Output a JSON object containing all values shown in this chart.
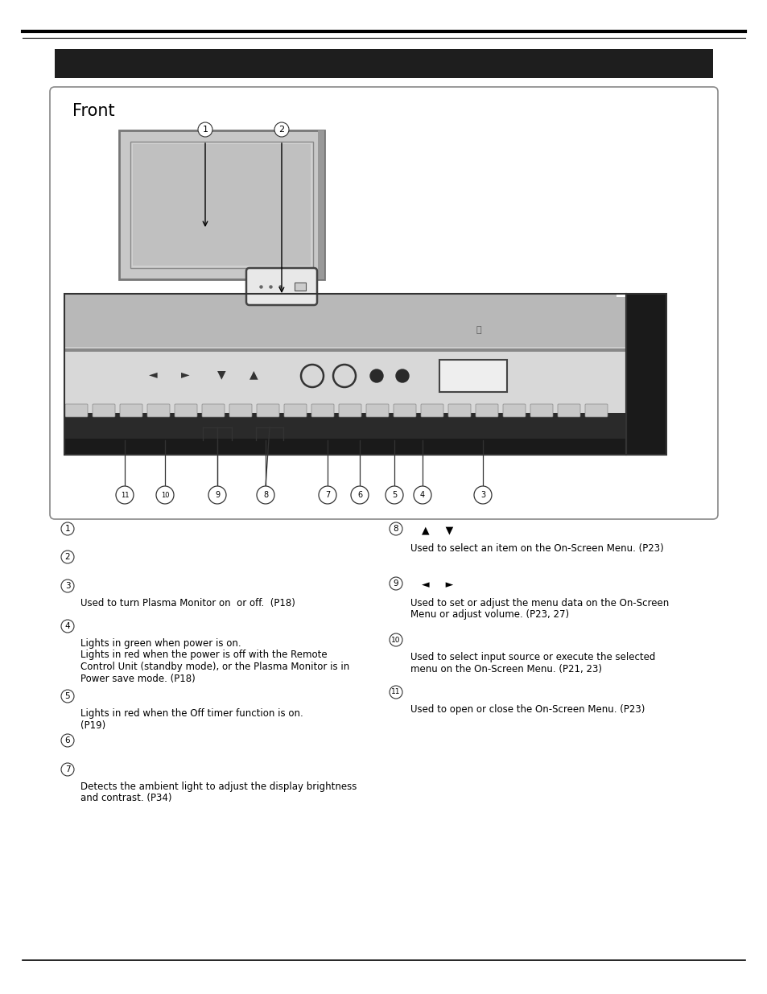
{
  "page_bg": "#ffffff",
  "header_bar_color": "#1e1e1e",
  "diag_box_color": "#ffffff",
  "diag_box_border": "#888888",
  "front_label": "Front",
  "monitor_frame_outer": "#aaaaaa",
  "monitor_frame_inner": "#888888",
  "monitor_screen": "#c0c0c0",
  "panel_top_bg": "#b8b8b8",
  "panel_body_bg": "#d0d0d0",
  "panel_black": "#1a1a1a",
  "ctrl_panel_bg": "#e0e0e0",
  "left_items": [
    [
      "1",
      null,
      null
    ],
    [
      "2",
      null,
      null
    ],
    [
      "3",
      "Used to turn Plasma Monitor on  or off.  (P18)",
      null
    ],
    [
      "4",
      "Lights in green when power is on.\nLights in red when the power is off with the Remote\nControl Unit (standby mode), or the Plasma Monitor is in\nPower save mode. (P18)",
      null
    ],
    [
      "5",
      "Lights in red when the Off timer function is on.\n(P19)",
      null
    ],
    [
      "6",
      null,
      null
    ],
    [
      "7",
      "Detects the ambient light to adjust the display brightness\nand contrast. (P34)",
      null
    ]
  ],
  "right_items": [
    [
      "8",
      "Used to select an item on the On-Screen Menu. (P23)",
      "▲     ▼"
    ],
    [
      "9",
      "Used to set or adjust the menu data on the On-Screen\nMenu or adjust volume. (P23, 27)",
      "◄     ►"
    ],
    [
      "10",
      "Used to select input source or execute the selected\nmenu on the On-Screen Menu. (P21, 23)",
      null
    ],
    [
      "11",
      "Used to open or close the On-Screen Menu. (P23)",
      null
    ]
  ]
}
